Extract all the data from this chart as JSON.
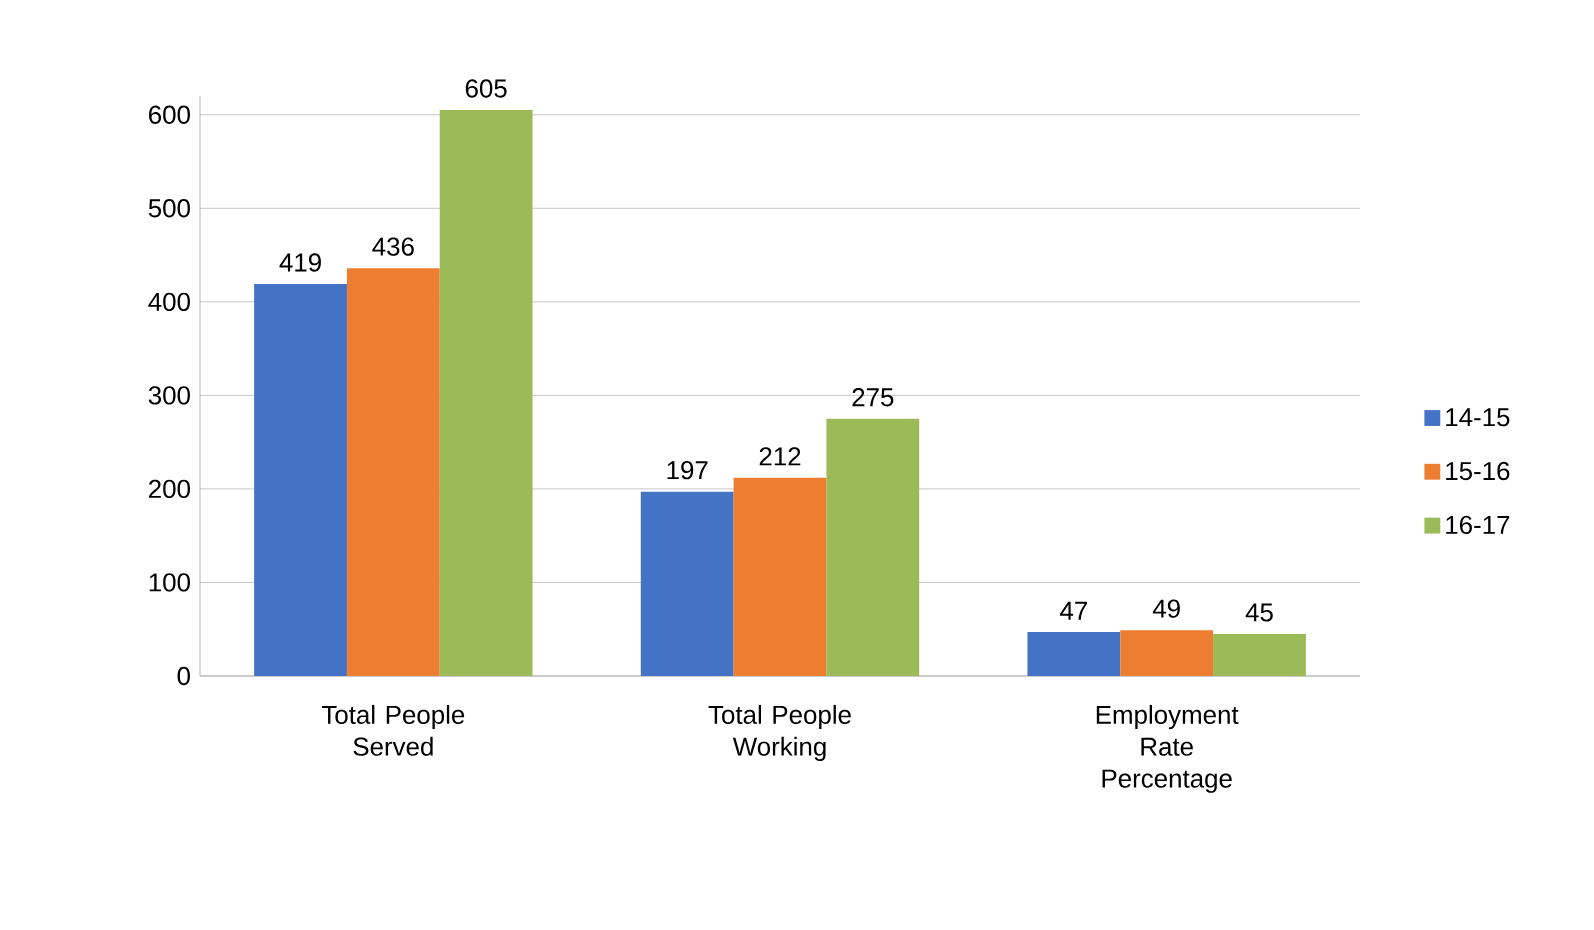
{
  "chart_data": {
    "type": "bar",
    "categories": [
      "Total People Served",
      "Total People Working",
      "Employment Rate Percentage"
    ],
    "series": [
      {
        "name": "14-15",
        "color": "#4472c4",
        "values": [
          419,
          197,
          47
        ]
      },
      {
        "name": "15-16",
        "color": "#ed7d31",
        "values": [
          436,
          212,
          49
        ]
      },
      {
        "name": "16-17",
        "color": "#9bbb59",
        "values": [
          605,
          275,
          45
        ]
      }
    ],
    "ylim": [
      0,
      620
    ],
    "yticks": [
      0,
      100,
      200,
      300,
      400,
      500,
      600
    ],
    "grid": "y",
    "legend": "right",
    "data_labels": true
  }
}
